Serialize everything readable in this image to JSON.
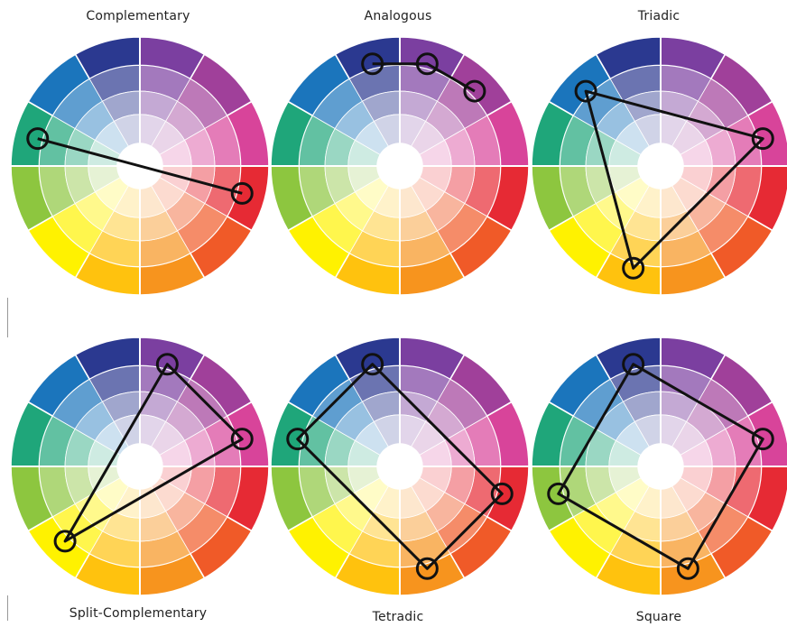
{
  "colors": {
    "wheel_segments": [
      "#7b3fa0",
      "#a0409a",
      "#d8449a",
      "#e62a34",
      "#f05a28",
      "#f7941e",
      "#ffc20e",
      "#fff200",
      "#8dc63f",
      "#1fa67a",
      "#1b75bc",
      "#2b3990"
    ],
    "line": "#111111",
    "divider": "#ffffff"
  },
  "diagrams": [
    {
      "title": "Complementary",
      "markers": [
        9,
        3
      ]
    },
    {
      "title": "Analogous",
      "markers": [
        11,
        0,
        1
      ]
    },
    {
      "title": "Triadic",
      "markers": [
        10,
        2,
        6
      ]
    },
    {
      "title": "Split-Complementary",
      "markers": [
        0,
        2,
        7
      ]
    },
    {
      "title": "Tetradic",
      "markers": [
        11,
        3,
        5,
        9
      ]
    },
    {
      "title": "Square",
      "markers": [
        11,
        2,
        5,
        8
      ]
    }
  ]
}
